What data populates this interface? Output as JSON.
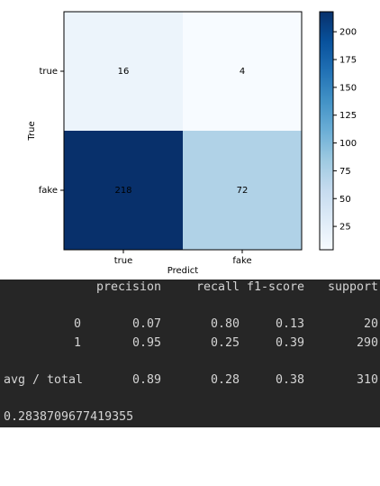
{
  "chart_data": {
    "type": "heatmap",
    "title": "",
    "xlabel": "Predict",
    "ylabel": "True",
    "x_categories": [
      "true",
      "fake"
    ],
    "y_categories": [
      "true",
      "fake"
    ],
    "matrix": [
      [
        16,
        4
      ],
      [
        218,
        72
      ]
    ],
    "colormap": "Blues",
    "vmin": 4,
    "vmax": 218,
    "colorbar_ticks": [
      25,
      50,
      75,
      100,
      125,
      150,
      175,
      200
    ]
  },
  "report": {
    "headers": [
      "precision",
      "recall",
      "f1-score",
      "support"
    ],
    "rows": [
      {
        "label": "0",
        "values": [
          "0.07",
          "0.80",
          "0.13",
          "20"
        ]
      },
      {
        "label": "1",
        "values": [
          "0.95",
          "0.25",
          "0.39",
          "290"
        ]
      }
    ],
    "total": {
      "label": "avg / total",
      "values": [
        "0.89",
        "0.28",
        "0.38",
        "310"
      ]
    },
    "accuracy": "0.2838709677419355"
  },
  "colors": {
    "report_bg": "#262626",
    "report_text": "#d4d4d4"
  }
}
